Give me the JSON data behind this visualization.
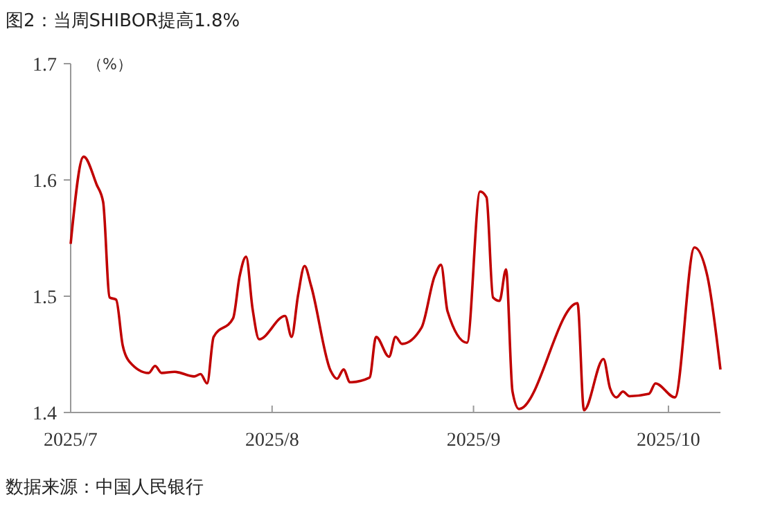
{
  "chart_data": {
    "type": "line",
    "title": "图2：当周SHIBOR提高1.8%",
    "ylabel": "（%）",
    "annotations": [
      "数据来源：中国人民银行"
    ],
    "x": [
      "2025-07-01",
      "2025-07-03",
      "2025-07-05",
      "2025-07-06",
      "2025-07-07",
      "2025-07-08",
      "2025-07-09",
      "2025-07-10",
      "2025-07-13",
      "2025-07-14",
      "2025-07-15",
      "2025-07-17",
      "2025-07-20",
      "2025-07-21",
      "2025-07-22",
      "2025-07-23",
      "2025-07-26",
      "2025-07-27",
      "2025-07-28",
      "2025-07-29",
      "2025-07-30",
      "2025-08-03",
      "2025-08-04",
      "2025-08-05",
      "2025-08-06",
      "2025-08-07",
      "2025-08-10",
      "2025-08-11",
      "2025-08-12",
      "2025-08-13",
      "2025-08-16",
      "2025-08-17",
      "2025-08-19",
      "2025-08-20",
      "2025-08-21",
      "2025-08-24",
      "2025-08-26",
      "2025-08-27",
      "2025-08-28",
      "2025-08-31",
      "2025-09-02",
      "2025-09-03",
      "2025-09-04",
      "2025-09-05",
      "2025-09-06",
      "2025-09-07",
      "2025-09-08",
      "2025-09-17",
      "2025-09-18",
      "2025-09-21",
      "2025-09-22",
      "2025-09-23",
      "2025-09-24",
      "2025-09-25",
      "2025-09-28",
      "2025-09-29",
      "2025-10-02",
      "2025-10-05",
      "2025-10-07",
      "2025-10-09"
    ],
    "series": [
      {
        "color": "#c00000",
        "values": [
          1.545,
          1.62,
          1.596,
          1.581,
          1.499,
          1.497,
          1.458,
          1.444,
          1.434,
          1.44,
          1.434,
          1.435,
          1.431,
          1.433,
          1.425,
          1.465,
          1.481,
          1.517,
          1.534,
          1.489,
          1.463,
          1.483,
          1.465,
          1.501,
          1.526,
          1.509,
          1.436,
          1.429,
          1.437,
          1.426,
          1.43,
          1.465,
          1.448,
          1.465,
          1.459,
          1.473,
          1.517,
          1.527,
          1.487,
          1.46,
          1.59,
          1.585,
          1.499,
          1.496,
          1.523,
          1.418,
          1.403,
          1.494,
          1.402,
          1.446,
          1.421,
          1.413,
          1.418,
          1.414,
          1.416,
          1.425,
          1.413,
          1.542,
          1.517,
          1.437
        ]
      }
    ],
    "xlim": [
      "2025-07-01",
      "2025-10-09"
    ],
    "xticks": [
      {
        "value": "2025-07-01",
        "label": "2025/7"
      },
      {
        "value": "2025-08-01",
        "label": "2025/8"
      },
      {
        "value": "2025-09-01",
        "label": "2025/9"
      },
      {
        "value": "2025-10-01",
        "label": "2025/10"
      }
    ],
    "ylim": [
      1.4,
      1.7
    ],
    "yticks": [
      1.4,
      1.5,
      1.6,
      1.7
    ],
    "grid": false,
    "marker": "none",
    "line_style": "solid"
  }
}
